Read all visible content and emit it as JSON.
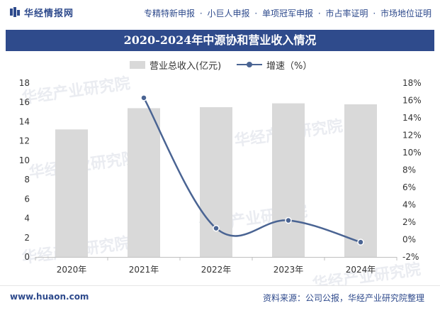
{
  "header": {
    "logo_text": "华经情报网",
    "nav_items": [
      "专精特新申报",
      "小巨人申报",
      "单项冠军申报",
      "市占率证明",
      "市场地位证明"
    ],
    "separator": "·"
  },
  "watermark": "华经产业研究院",
  "footer": {
    "site": "www.huaon.com",
    "source": "资料来源：公司公报，华经产业研究院整理"
  },
  "colors": {
    "brand": "#2f4b8c",
    "bar": "#d9d9d9",
    "line": "#4a6493"
  },
  "chart_data": {
    "type": "bar+line",
    "title": "2020-2024年中源协和营业收入情况",
    "categories": [
      "2020年",
      "2021年",
      "2022年",
      "2023年",
      "2024年"
    ],
    "series": [
      {
        "name": "营业总收入(亿元)",
        "type": "bar",
        "axis": "left",
        "values": [
          13.2,
          15.4,
          15.5,
          15.9,
          15.8
        ]
      },
      {
        "name": "增速（%）",
        "type": "line",
        "axis": "right",
        "values": [
          null,
          16.3,
          1.3,
          2.2,
          -0.3
        ]
      }
    ],
    "left_axis": {
      "min": 0,
      "max": 18,
      "step": 2,
      "ticks": [
        "0",
        "2",
        "4",
        "6",
        "8",
        "10",
        "12",
        "14",
        "16",
        "18"
      ]
    },
    "right_axis": {
      "min": -2,
      "max": 18,
      "step": 2,
      "ticks": [
        "-2%",
        "0%",
        "2%",
        "4%",
        "6%",
        "8%",
        "10%",
        "12%",
        "14%",
        "16%",
        "18%"
      ]
    },
    "legend": [
      "营业总收入(亿元)",
      "增速（%）"
    ],
    "grid": false
  }
}
